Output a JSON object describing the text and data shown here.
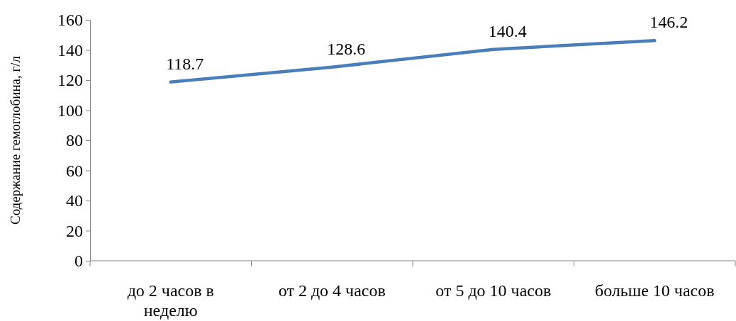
{
  "chart_data": {
    "type": "line",
    "ylabel": "Содержание гемоглобина, г/л",
    "categories": [
      "до 2 часов в неделю",
      "от 2 до 4 часов",
      "от 5 до 10 часов",
      "больше 10 часов"
    ],
    "series": [
      {
        "color": "#4a7ebb",
        "values": [
          118.7,
          128.6,
          140.4,
          146.2
        ]
      }
    ],
    "ylim": [
      0,
      160
    ],
    "yticks": [
      0,
      20,
      40,
      60,
      80,
      100,
      120,
      140,
      160
    ],
    "data_labels": true,
    "grid": false,
    "marker": "none",
    "line_style": "solid"
  }
}
